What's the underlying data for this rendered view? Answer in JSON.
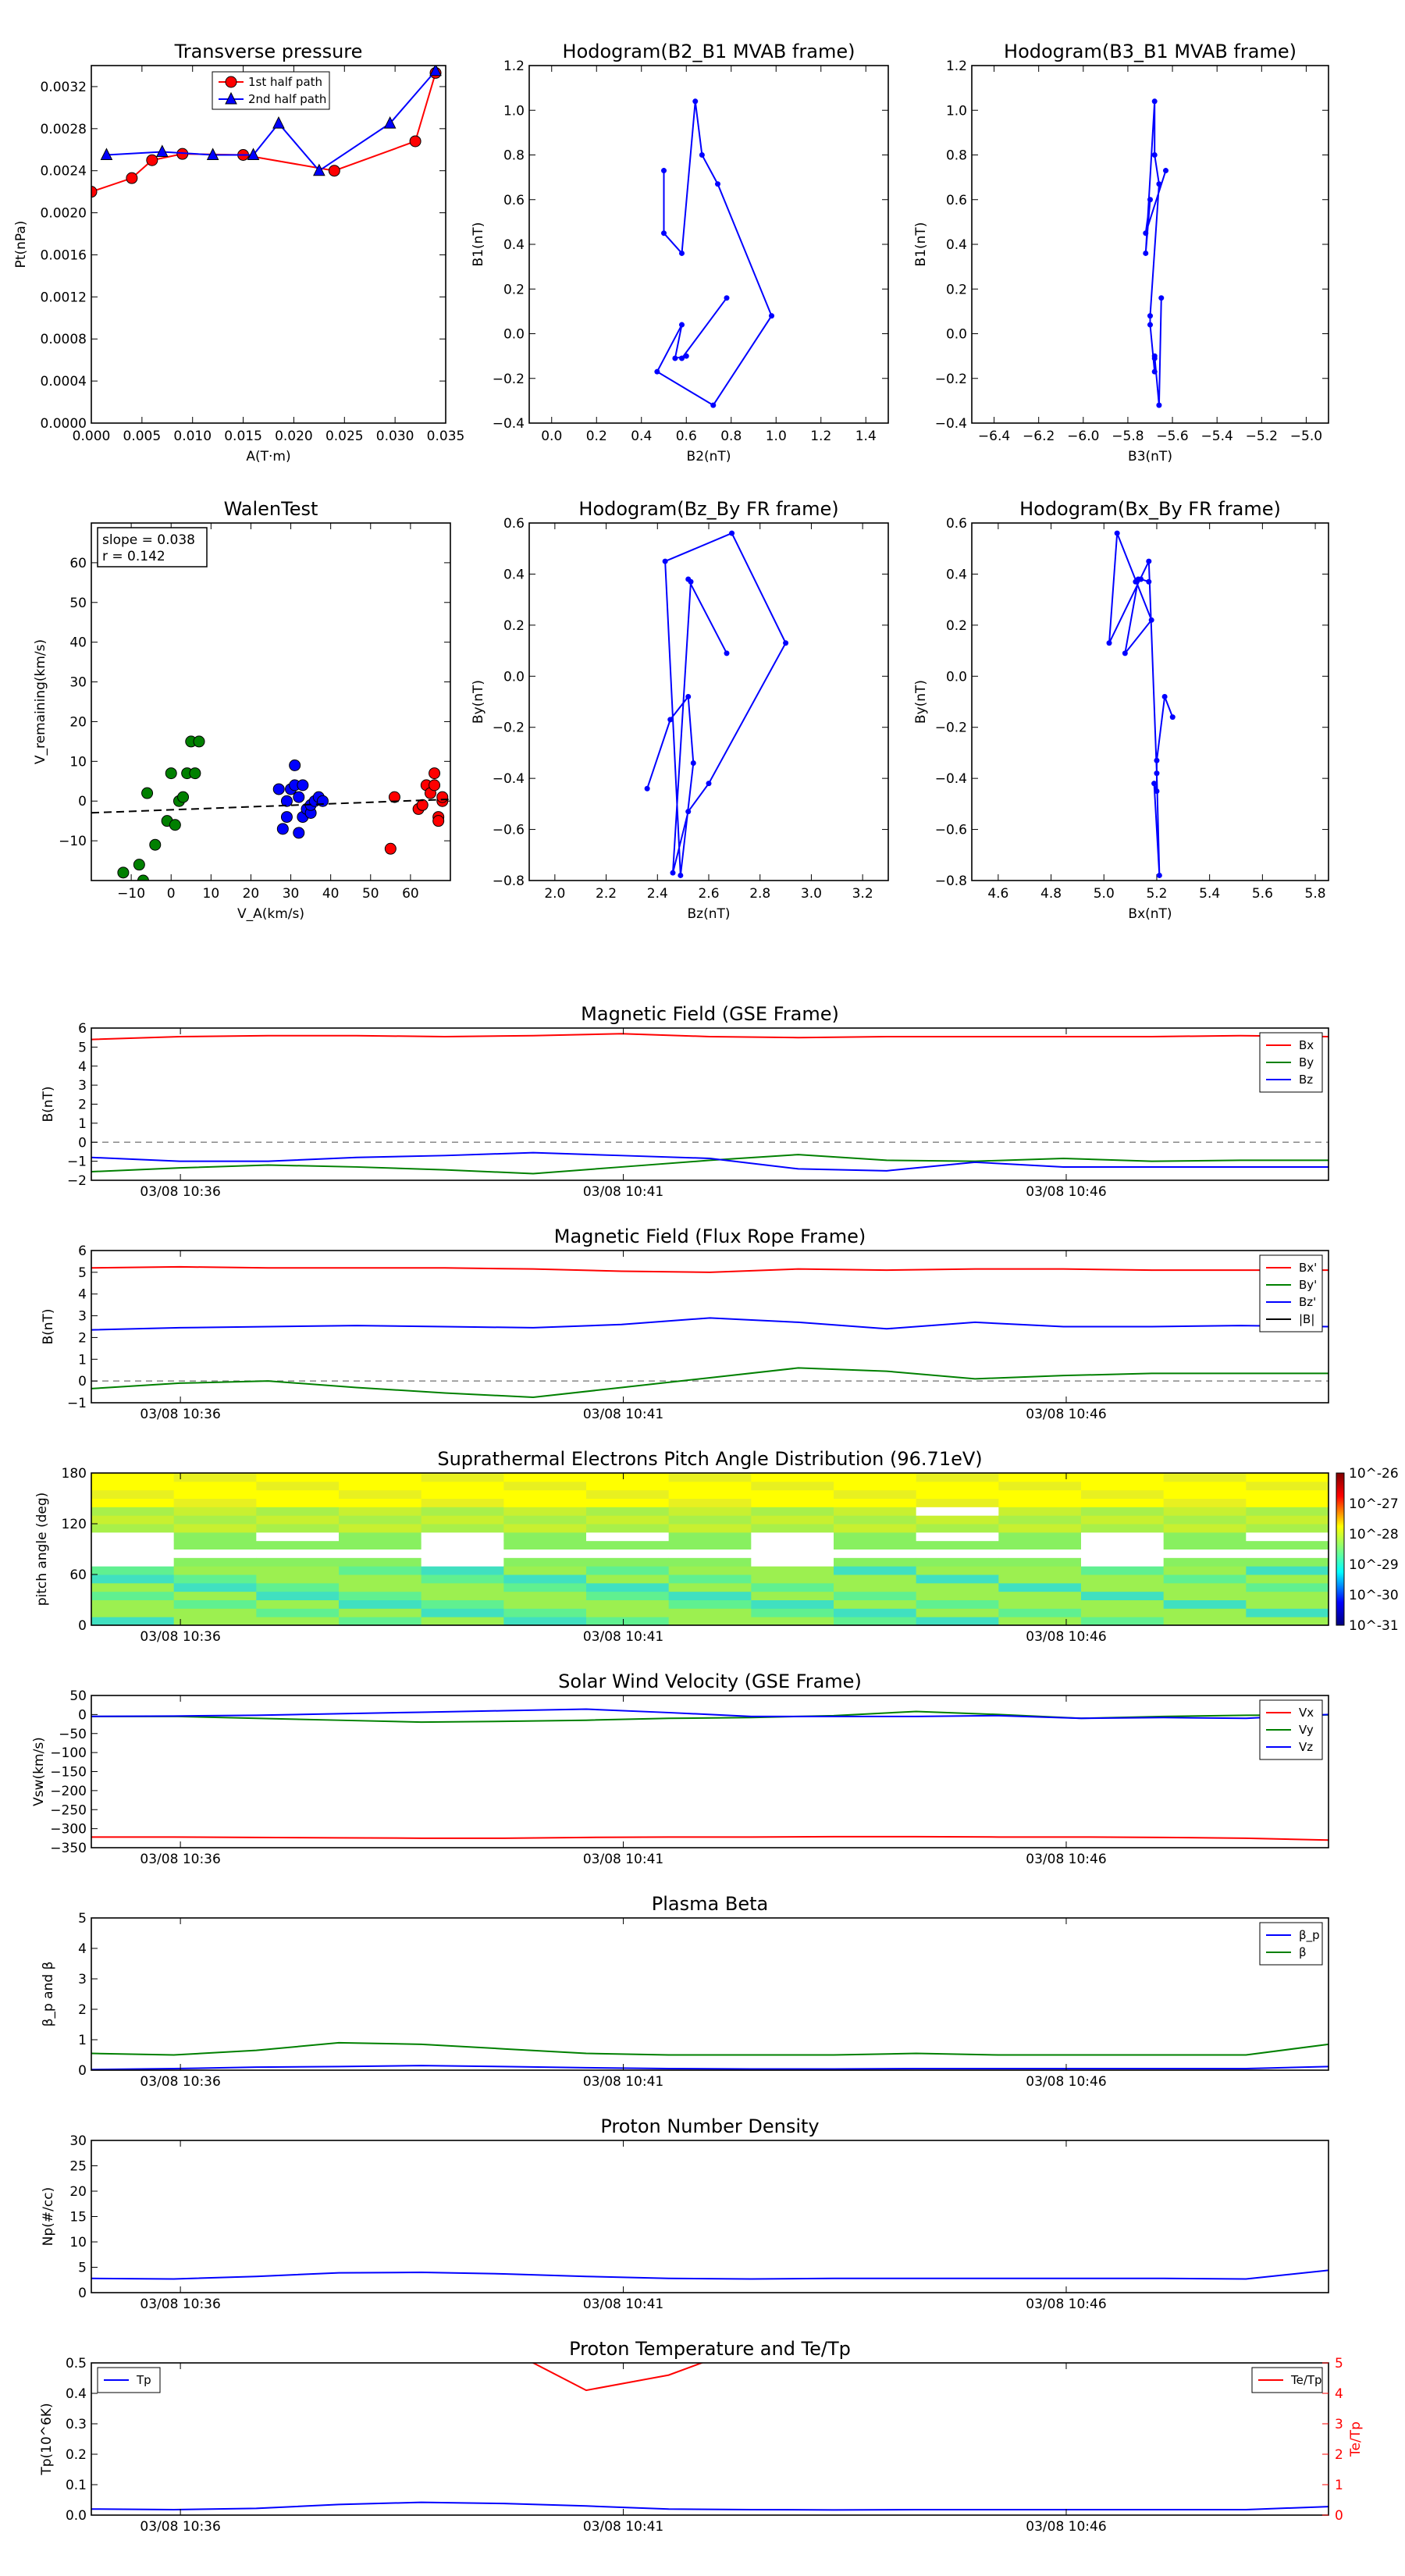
{
  "colors": {
    "red": "#ff0000",
    "green": "#008000",
    "blue": "#0000ff",
    "black": "#000000",
    "grey": "#888888"
  },
  "time_ticks": [
    "03/08 10:36",
    "03/08 10:41",
    "03/08 10:46"
  ],
  "chart_data": [
    {
      "id": "tp",
      "type": "line",
      "title": "Transverse pressure",
      "xlabel": "A(T·m)",
      "ylabel": "Pt(nPa)",
      "xlim": [
        0,
        0.035
      ],
      "ylim": [
        0,
        0.0034
      ],
      "xticks": [
        "0.000",
        "0.005",
        "0.010",
        "0.015",
        "0.020",
        "0.025",
        "0.030",
        "0.035"
      ],
      "yticks": [
        "0.0000",
        "0.0004",
        "0.0008",
        "0.0012",
        "0.0016",
        "0.0020",
        "0.0024",
        "0.0028",
        "0.0032"
      ],
      "legend": [
        "1st half path",
        "2nd half path"
      ],
      "series": [
        {
          "name": "1st half path",
          "color": "#ff0000",
          "marker": "circle",
          "x": [
            0.0,
            0.004,
            0.006,
            0.009,
            0.015,
            0.024,
            0.032,
            0.034
          ],
          "y": [
            0.0022,
            0.00233,
            0.0025,
            0.00256,
            0.00255,
            0.0024,
            0.00268,
            0.00333
          ]
        },
        {
          "name": "2nd half path",
          "color": "#0000ff",
          "marker": "triangle",
          "x": [
            0.0015,
            0.007,
            0.012,
            0.016,
            0.0185,
            0.0225,
            0.0295,
            0.034
          ],
          "y": [
            0.00255,
            0.00258,
            0.00255,
            0.00255,
            0.00285,
            0.0024,
            0.00285,
            0.00335
          ]
        }
      ]
    },
    {
      "id": "h1",
      "type": "line",
      "title": "Hodogram(B2_B1 MVAB frame)",
      "xlabel": "B2(nT)",
      "ylabel": "B1(nT)",
      "xlim": [
        -0.1,
        1.5
      ],
      "ylim": [
        -0.4,
        1.2
      ],
      "xticks": [
        "0.0",
        "0.2",
        "0.4",
        "0.6",
        "0.8",
        "1.0",
        "1.2",
        "1.4"
      ],
      "yticks": [
        "−0.4",
        "−0.2",
        "0.0",
        "0.2",
        "0.4",
        "0.6",
        "0.8",
        "1.0",
        "1.2"
      ],
      "series": [
        {
          "color": "#0000ff",
          "marker": "dot",
          "x": [
            0.5,
            0.5,
            0.58,
            0.64,
            0.67,
            0.74,
            0.98,
            0.72,
            0.47,
            0.58,
            0.55,
            0.6,
            0.58,
            0.78
          ],
          "y": [
            0.73,
            0.45,
            0.36,
            1.04,
            0.8,
            0.67,
            0.08,
            -0.32,
            -0.17,
            0.04,
            -0.11,
            -0.1,
            -0.11,
            0.16
          ]
        }
      ]
    },
    {
      "id": "h2",
      "type": "line",
      "title": "Hodogram(B3_B1 MVAB frame)",
      "xlabel": "B3(nT)",
      "ylabel": "B1(nT)",
      "xlim": [
        -6.5,
        -4.9
      ],
      "ylim": [
        -0.4,
        1.2
      ],
      "xticks": [
        "−6.4",
        "−6.2",
        "−6.0",
        "−5.8",
        "−5.6",
        "−5.4",
        "−5.2",
        "−5.0"
      ],
      "yticks": [
        "−0.4",
        "−0.2",
        "0.0",
        "0.2",
        "0.4",
        "0.6",
        "0.8",
        "1.0",
        "1.2"
      ],
      "series": [
        {
          "color": "#0000ff",
          "marker": "dot",
          "x": [
            -5.63,
            -5.72,
            -5.7,
            -5.72,
            -5.68,
            -5.68,
            -5.66,
            -5.7,
            -5.7,
            -5.68,
            -5.68,
            -5.68,
            -5.66,
            -5.65
          ],
          "y": [
            0.73,
            0.45,
            0.6,
            0.36,
            1.04,
            0.8,
            0.67,
            0.08,
            0.04,
            -0.17,
            -0.11,
            -0.1,
            -0.32,
            0.16
          ]
        }
      ]
    },
    {
      "id": "walen",
      "type": "scatter",
      "title": "WalenTest",
      "xlabel": "V_A(km/s)",
      "ylabel": "V_remaining(km/s)",
      "xlim": [
        -20,
        70
      ],
      "ylim": [
        -20,
        70
      ],
      "xticks": [
        "−10",
        "0",
        "10",
        "20",
        "30",
        "40",
        "50",
        "60"
      ],
      "yticks": [
        "−10",
        "0",
        "10",
        "20",
        "30",
        "40",
        "50",
        "60"
      ],
      "annotation": [
        "slope = 0.038",
        "r = 0.142"
      ],
      "fit": {
        "slope": 0.038,
        "intercept": -2.2
      },
      "series": [
        {
          "color": "#008000",
          "x": [
            -12,
            -7,
            -8,
            -6,
            -4,
            -1,
            0,
            1,
            2,
            3,
            4,
            5,
            7,
            6
          ],
          "y": [
            -18,
            -20,
            -16,
            2,
            -11,
            -5,
            7,
            -6,
            0,
            1,
            7,
            15,
            15,
            7
          ]
        },
        {
          "color": "#0000ff",
          "x": [
            27,
            28,
            29,
            29,
            30,
            31,
            31,
            32,
            32,
            33,
            33,
            34,
            35,
            35,
            36,
            37,
            38
          ],
          "y": [
            3,
            -7,
            -4,
            0,
            3,
            4,
            9,
            1,
            -8,
            4,
            -4,
            -2,
            -3,
            -1,
            0,
            1,
            0
          ]
        },
        {
          "color": "#ff0000",
          "x": [
            55,
            56,
            62,
            63,
            64,
            65,
            66,
            66,
            67,
            67,
            68,
            68
          ],
          "y": [
            -12,
            1,
            -2,
            -1,
            4,
            2,
            4,
            7,
            -4,
            -5,
            0,
            1
          ]
        }
      ]
    },
    {
      "id": "h3",
      "type": "line",
      "title": "Hodogram(Bz_By FR frame)",
      "xlabel": "Bz(nT)",
      "ylabel": "By(nT)",
      "xlim": [
        1.9,
        3.3
      ],
      "ylim": [
        -0.8,
        0.6
      ],
      "xticks": [
        "2.0",
        "2.2",
        "2.4",
        "2.6",
        "2.8",
        "3.0",
        "3.2"
      ],
      "yticks": [
        "−0.8",
        "−0.6",
        "−0.4",
        "−0.2",
        "0.0",
        "0.2",
        "0.4",
        "0.6"
      ],
      "series": [
        {
          "color": "#0000ff",
          "marker": "dot",
          "x": [
            2.36,
            2.45,
            2.52,
            2.54,
            2.49,
            2.43,
            2.69,
            2.9,
            2.6,
            2.52,
            2.46,
            2.53,
            2.52,
            2.67
          ],
          "y": [
            -0.44,
            -0.17,
            -0.08,
            -0.34,
            -0.78,
            0.45,
            0.56,
            0.13,
            -0.42,
            -0.53,
            -0.77,
            0.37,
            0.38,
            0.09
          ]
        }
      ]
    },
    {
      "id": "h4",
      "type": "line",
      "title": "Hodogram(Bx_By FR frame)",
      "xlabel": "Bx(nT)",
      "ylabel": "By(nT)",
      "xlim": [
        4.5,
        5.85
      ],
      "ylim": [
        -0.8,
        0.6
      ],
      "xticks": [
        "4.6",
        "4.8",
        "5.0",
        "5.2",
        "5.4",
        "5.6",
        "5.8"
      ],
      "yticks": [
        "−0.8",
        "−0.6",
        "−0.4",
        "−0.2",
        "0.0",
        "0.2",
        "0.4",
        "0.6"
      ],
      "series": [
        {
          "color": "#0000ff",
          "marker": "dot",
          "x": [
            5.26,
            5.23,
            5.2,
            5.2,
            5.19,
            5.21,
            5.2,
            5.17,
            5.02,
            5.05,
            5.18,
            5.08,
            5.13,
            5.12,
            5.14,
            5.17
          ],
          "y": [
            -0.16,
            -0.08,
            -0.33,
            -0.45,
            -0.42,
            -0.78,
            -0.38,
            0.45,
            0.13,
            0.56,
            0.22,
            0.09,
            0.38,
            0.37,
            0.38,
            0.37
          ]
        }
      ]
    },
    {
      "id": "mag_gse",
      "type": "line",
      "title": "Magnetic Field (GSE Frame)",
      "ylabel": "B(nT)",
      "ylim": [
        -2,
        6
      ],
      "yticks": [
        "−2",
        "−1",
        "0",
        "1",
        "2",
        "3",
        "4",
        "5",
        "6"
      ],
      "legend": [
        "Bx",
        "By",
        "Bz"
      ],
      "series": [
        {
          "name": "Bx",
          "color": "#ff0000",
          "y": [
            5.4,
            5.55,
            5.6,
            5.6,
            5.55,
            5.6,
            5.7,
            5.55,
            5.5,
            5.55,
            5.55,
            5.55,
            5.55,
            5.6,
            5.55
          ]
        },
        {
          "name": "By",
          "color": "#008000",
          "y": [
            -1.55,
            -1.35,
            -1.2,
            -1.3,
            -1.45,
            -1.65,
            -1.3,
            -0.95,
            -0.65,
            -0.95,
            -1.0,
            -0.85,
            -1.0,
            -0.95,
            -0.95
          ]
        },
        {
          "name": "Bz",
          "color": "#0000ff",
          "y": [
            -0.8,
            -1.0,
            -1.0,
            -0.8,
            -0.7,
            -0.55,
            -0.7,
            -0.85,
            -1.4,
            -1.5,
            -1.05,
            -1.3,
            -1.3,
            -1.3,
            -1.3
          ]
        }
      ]
    },
    {
      "id": "mag_fr",
      "type": "line",
      "title": "Magnetic Field (Flux Rope Frame)",
      "ylabel": "B(nT)",
      "ylim": [
        -1,
        6
      ],
      "yticks": [
        "−1",
        "0",
        "1",
        "2",
        "3",
        "4",
        "5",
        "6"
      ],
      "legend": [
        "Bx'",
        "By'",
        "Bz'",
        "|B|"
      ],
      "series": [
        {
          "name": "Bx'",
          "color": "#ff0000",
          "y": [
            5.2,
            5.25,
            5.2,
            5.2,
            5.2,
            5.15,
            5.05,
            5.0,
            5.15,
            5.1,
            5.15,
            5.15,
            5.1,
            5.1,
            5.1
          ]
        },
        {
          "name": "By'",
          "color": "#008000",
          "y": [
            -0.35,
            -0.1,
            0.0,
            -0.3,
            -0.55,
            -0.75,
            -0.3,
            0.15,
            0.6,
            0.45,
            0.1,
            0.25,
            0.35,
            0.35,
            0.35
          ]
        },
        {
          "name": "Bz'",
          "color": "#0000ff",
          "y": [
            2.35,
            2.45,
            2.5,
            2.55,
            2.5,
            2.45,
            2.6,
            2.9,
            2.7,
            2.4,
            2.7,
            2.5,
            2.5,
            2.55,
            2.5
          ]
        },
        {
          "name": "|B|",
          "color": "#000000",
          "y": []
        }
      ]
    },
    {
      "id": "pad",
      "type": "heatmap",
      "title": "Suprathermal Electrons Pitch Angle Distribution (96.71eV)",
      "ylabel": "pitch angle (deg)",
      "ylim": [
        0,
        180
      ],
      "yticks": [
        "0",
        "60",
        "120",
        "180"
      ],
      "colorbar_ticks": [
        "10^-26",
        "10^-27",
        "10^-28",
        "10^-29",
        "10^-30",
        "10^-31"
      ]
    },
    {
      "id": "vsw",
      "type": "line",
      "title": "Solar Wind Velocity (GSE Frame)",
      "ylabel": "Vsw(km/s)",
      "ylim": [
        -350,
        50
      ],
      "yticks": [
        "−350",
        "−300",
        "−250",
        "−200",
        "−150",
        "−100",
        "−50",
        "0",
        "50"
      ],
      "legend": [
        "Vx",
        "Vy",
        "Vz"
      ],
      "series": [
        {
          "name": "Vx",
          "color": "#ff0000",
          "y": [
            -322,
            -322,
            -323,
            -324,
            -325,
            -325,
            -323,
            -322,
            -322,
            -321,
            -321,
            -322,
            -322,
            -323,
            -325,
            -330
          ]
        },
        {
          "name": "Vy",
          "color": "#008000",
          "y": [
            -5,
            -5,
            -10,
            -15,
            -20,
            -18,
            -15,
            -10,
            -8,
            -3,
            8,
            0,
            -10,
            -5,
            -2,
            -1
          ]
        },
        {
          "name": "Vz",
          "color": "#0000ff",
          "y": [
            -5,
            -4,
            -2,
            2,
            6,
            10,
            14,
            5,
            -5,
            -5,
            -5,
            -3,
            -10,
            -8,
            -10,
            0
          ]
        }
      ]
    },
    {
      "id": "beta",
      "type": "line",
      "title": "Plasma Beta",
      "ylabel": "β_p and β",
      "ylim": [
        0,
        5
      ],
      "yticks": [
        "0",
        "1",
        "2",
        "3",
        "4",
        "5"
      ],
      "legend": [
        "β_p",
        "β"
      ],
      "series": [
        {
          "name": "β_p",
          "color": "#0000ff",
          "y": [
            0.02,
            0.05,
            0.1,
            0.12,
            0.15,
            0.12,
            0.08,
            0.05,
            0.04,
            0.04,
            0.05,
            0.05,
            0.05,
            0.05,
            0.05,
            0.12
          ]
        },
        {
          "name": "β",
          "color": "#008000",
          "y": [
            0.55,
            0.5,
            0.65,
            0.9,
            0.85,
            0.7,
            0.55,
            0.5,
            0.5,
            0.5,
            0.55,
            0.5,
            0.5,
            0.5,
            0.5,
            0.85
          ]
        }
      ]
    },
    {
      "id": "np",
      "type": "line",
      "title": "Proton Number Density",
      "ylabel": "Np(#/cc)",
      "ylim": [
        0,
        30
      ],
      "yticks": [
        "0",
        "5",
        "10",
        "15",
        "20",
        "25",
        "30"
      ],
      "series": [
        {
          "color": "#0000ff",
          "y": [
            2.8,
            2.7,
            3.2,
            3.9,
            4.0,
            3.7,
            3.2,
            2.8,
            2.7,
            2.8,
            2.8,
            2.8,
            2.8,
            2.8,
            2.7,
            4.4
          ]
        }
      ]
    },
    {
      "id": "temp",
      "type": "line",
      "title": "Proton Temperature and Te/Tp",
      "ylabel": "Tp(10^6K)",
      "ylabel2": "Te/Tp",
      "ylim": [
        0,
        0.5
      ],
      "ylim2": [
        0,
        5
      ],
      "yticks": [
        "0.0",
        "0.1",
        "0.2",
        "0.3",
        "0.4",
        "0.5"
      ],
      "yticks2": [
        "0",
        "1",
        "2",
        "3",
        "4",
        "5"
      ],
      "legend": [
        "Tp",
        "Te/Tp"
      ],
      "series": [
        {
          "name": "Tp",
          "color": "#0000ff",
          "y": [
            0.02,
            0.018,
            0.022,
            0.035,
            0.042,
            0.038,
            0.03,
            0.02,
            0.018,
            0.017,
            0.018,
            0.018,
            0.018,
            0.018,
            0.018,
            0.028
          ]
        },
        {
          "name": "Te/Tp",
          "color": "#ff0000",
          "axis": 2,
          "y": [
            null,
            null,
            null,
            null,
            null,
            5.5,
            4.1,
            4.6,
            5.6,
            null,
            null,
            null,
            null,
            null,
            null,
            null
          ]
        }
      ]
    }
  ]
}
